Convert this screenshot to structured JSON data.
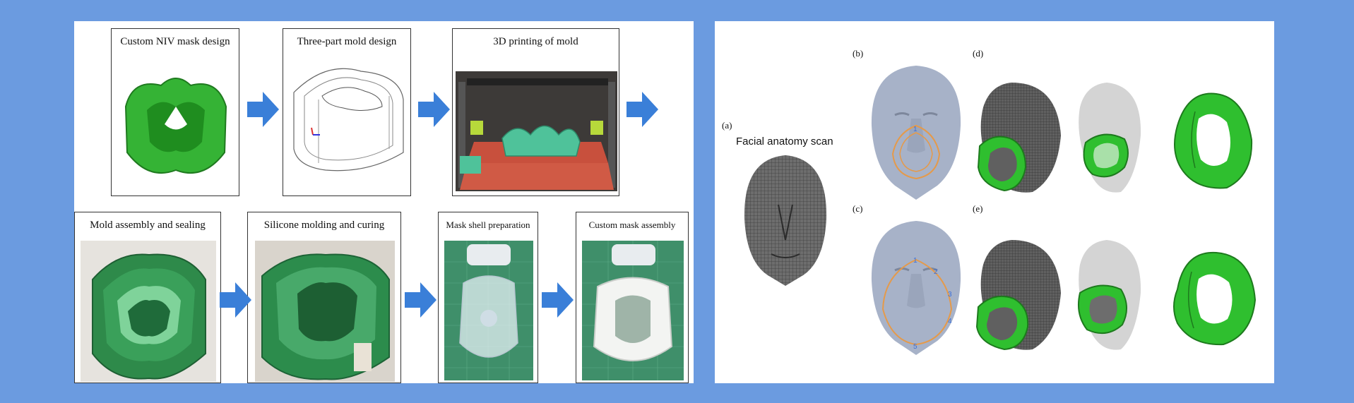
{
  "workflow": {
    "steps": [
      {
        "id": "custom-niv-mask-design",
        "label": "Custom NIV mask design"
      },
      {
        "id": "three-part-mold-design",
        "label": "Three-part mold design"
      },
      {
        "id": "3d-printing-of-mold",
        "label": "3D printing of mold"
      },
      {
        "id": "mold-assembly-and-sealing",
        "label": "Mold assembly and sealing"
      },
      {
        "id": "silicone-molding-and-curing",
        "label": "Silicone molding and curing"
      },
      {
        "id": "mask-shell-preparation",
        "label": "Mask shell preparation"
      },
      {
        "id": "custom-mask-assembly",
        "label": "Custom mask assembly"
      }
    ]
  },
  "anatomy": {
    "panel_labels": {
      "a": "(a)",
      "b": "(b)",
      "c": "(c)",
      "d": "(d)",
      "e": "(e)"
    },
    "scan_title": "Facial anatomy scan",
    "points_b": [
      "1"
    ],
    "points_c": [
      "1",
      "2",
      "3",
      "4",
      "5"
    ]
  },
  "colors": {
    "background": "#6b9be0",
    "mask_green": "#2fbf2f",
    "arrow_blue": "#3a7fd8",
    "outline_orange": "#e59a4a",
    "face_grey": "#a7b2c8"
  }
}
